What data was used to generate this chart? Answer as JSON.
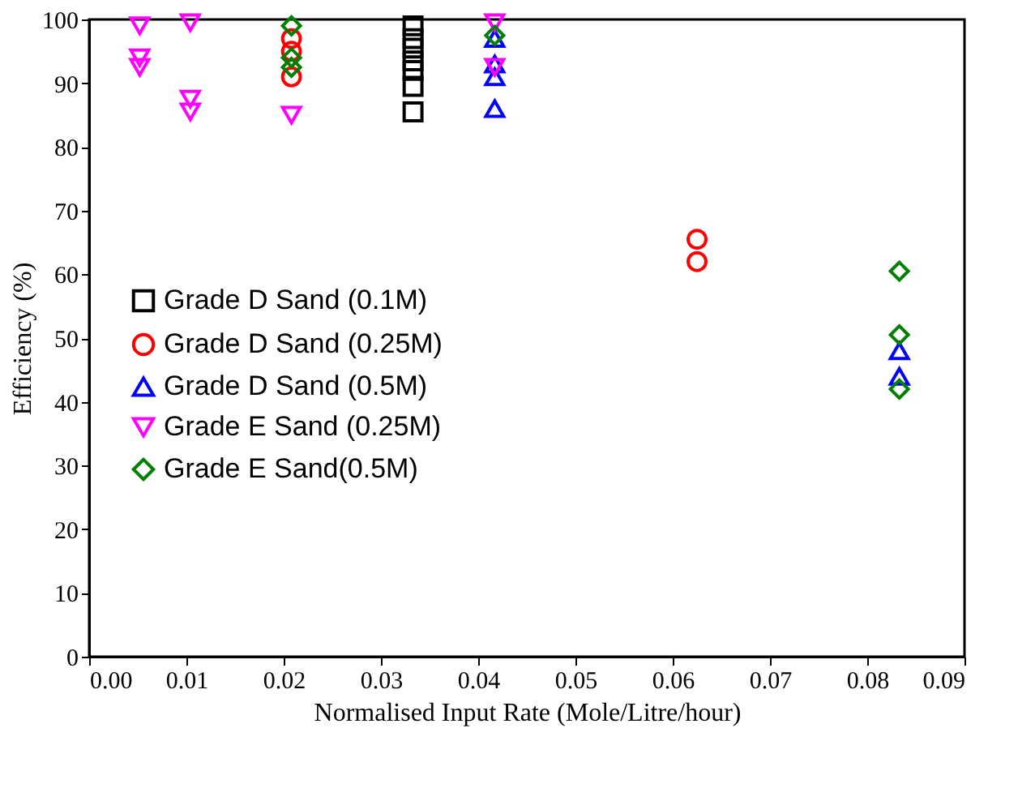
{
  "chart_data": {
    "type": "scatter",
    "xlabel": "Normalised Input Rate (Mole/Litre/hour)",
    "ylabel": "Efficiency (%)",
    "xlim": [
      0,
      0.09
    ],
    "xticks": [
      {
        "value": 0,
        "label": "0.00"
      },
      {
        "value": 0.01,
        "label": "0.01"
      },
      {
        "value": 0.02,
        "label": "0.02"
      },
      {
        "value": 0.03,
        "label": "0.03"
      },
      {
        "value": 0.04,
        "label": "0.04"
      },
      {
        "value": 0.05,
        "label": "0.05"
      },
      {
        "value": 0.06,
        "label": "0.06"
      },
      {
        "value": 0.07,
        "label": "0.07"
      },
      {
        "value": 0.08,
        "label": "0.08"
      },
      {
        "value": 0.09,
        "label": "0.09"
      }
    ],
    "ylim": [
      0,
      100
    ],
    "yticks": [
      0,
      10,
      20,
      30,
      40,
      50,
      60,
      70,
      80,
      90,
      100
    ],
    "grid": false,
    "legend": "left",
    "series": [
      {
        "name": "Grade D Sand (0.1M)",
        "color": "#000000",
        "marker": "square",
        "x": [
          0.0333,
          0.0333,
          0.0333,
          0.0333,
          0.0333,
          0.0333,
          0.0333
        ],
        "values": [
          99,
          97,
          95.5,
          93.5,
          92,
          89.5,
          85.5
        ]
      },
      {
        "name": "Grade D Sand (0.25M)",
        "color": "#ff0000",
        "marker": "circle",
        "x": [
          0.0208,
          0.0208,
          0.0208,
          0.0625,
          0.0625
        ],
        "values": [
          97,
          95,
          91,
          65.5,
          62
        ]
      },
      {
        "name": "Grade D Sand (0.5M)",
        "color": "#0000ff",
        "marker": "triangle",
        "x": [
          0.0417,
          0.0417,
          0.0417,
          0.0417,
          0.0833,
          0.0833
        ],
        "values": [
          97,
          93,
          91,
          86,
          48,
          44
        ]
      },
      {
        "name": "Grade E Sand (0.25M)",
        "color": "#ff00ff",
        "marker": "triangle-down",
        "x": [
          0.0052,
          0.0052,
          0.0052,
          0.0104,
          0.0104,
          0.0104,
          0.0208,
          0.0417,
          0.0417
        ],
        "values": [
          99,
          94,
          92.5,
          99.5,
          87.5,
          85.5,
          85,
          99.5,
          92.5
        ]
      },
      {
        "name": "Grade E Sand(0.5M)",
        "color": "#008000",
        "marker": "diamond",
        "x": [
          0.0208,
          0.0208,
          0.0208,
          0.0417,
          0.0833,
          0.0833,
          0.0833
        ],
        "values": [
          99,
          94,
          92.5,
          97.5,
          60.5,
          50.5,
          42
        ]
      }
    ]
  }
}
